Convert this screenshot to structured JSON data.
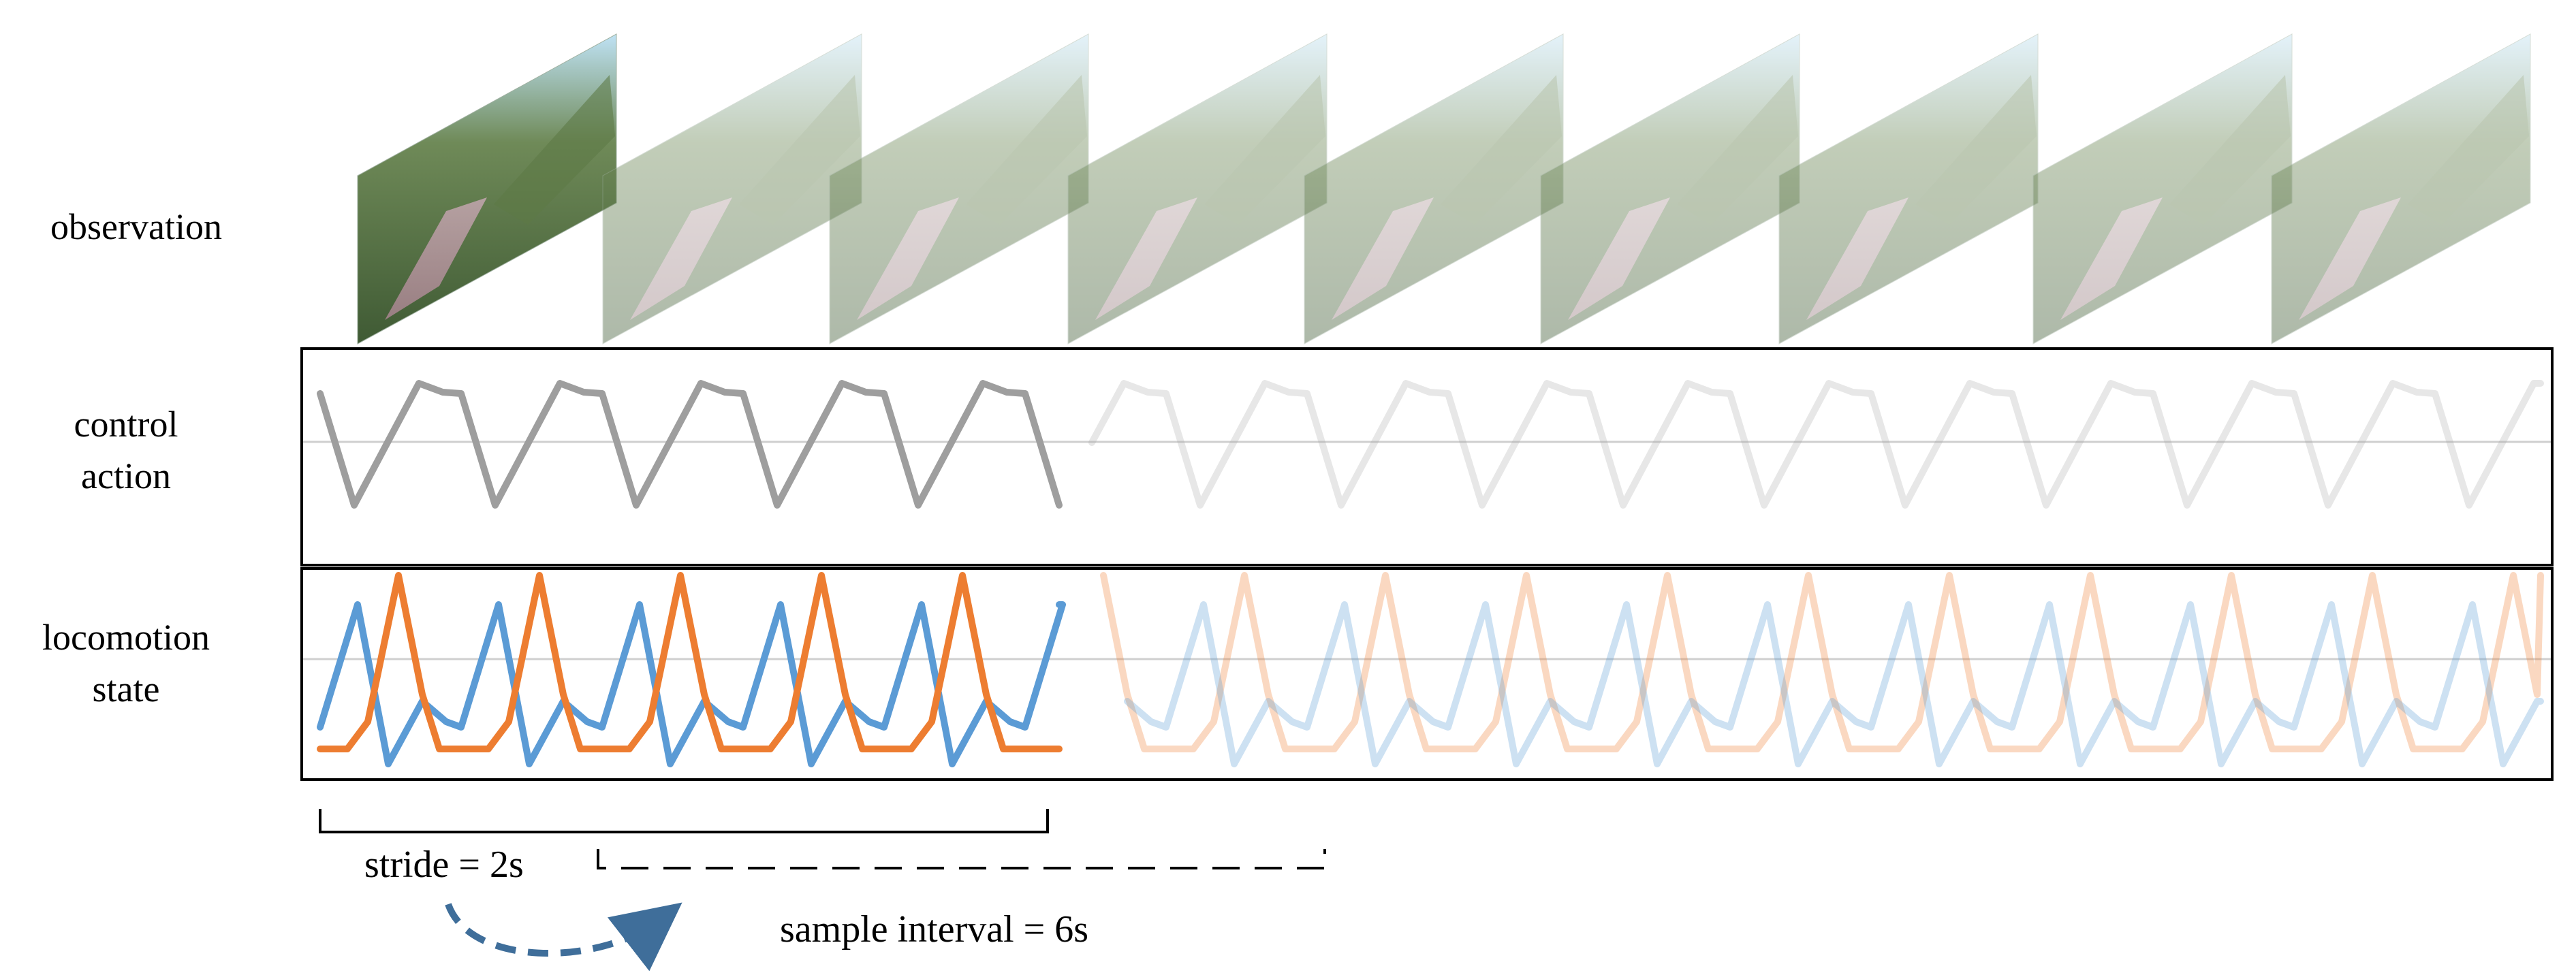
{
  "labels": {
    "observation": "observation",
    "control_action_line1": "control",
    "control_action_line2": "action",
    "locomotion_line1": "locomotion",
    "locomotion_line2": "state"
  },
  "annotations": {
    "stride": "stride = 2s",
    "sample_interval": "sample interval = 6s"
  },
  "observation_frames": [
    {
      "index": 1,
      "highlighted": true
    },
    {
      "index": 2,
      "highlighted": false
    },
    {
      "index": 3,
      "highlighted": false
    },
    {
      "index": 4,
      "highlighted": false
    },
    {
      "index": 5,
      "highlighted": false
    },
    {
      "index": 6,
      "highlighted": false
    },
    {
      "index": 7,
      "highlighted": false
    },
    {
      "index": 8,
      "highlighted": false
    },
    {
      "index": 9,
      "highlighted": false
    }
  ],
  "colors": {
    "control_action": "#9e9e9e",
    "locomotion_a": "#5b9bd5",
    "locomotion_b": "#ed7d31",
    "arrow": "#3f6e9a",
    "panel_border": "#000000",
    "midline": "#cfcfcf"
  },
  "icons": [
    "curved-dashed-arrow-icon",
    "bracket-icon"
  ]
}
